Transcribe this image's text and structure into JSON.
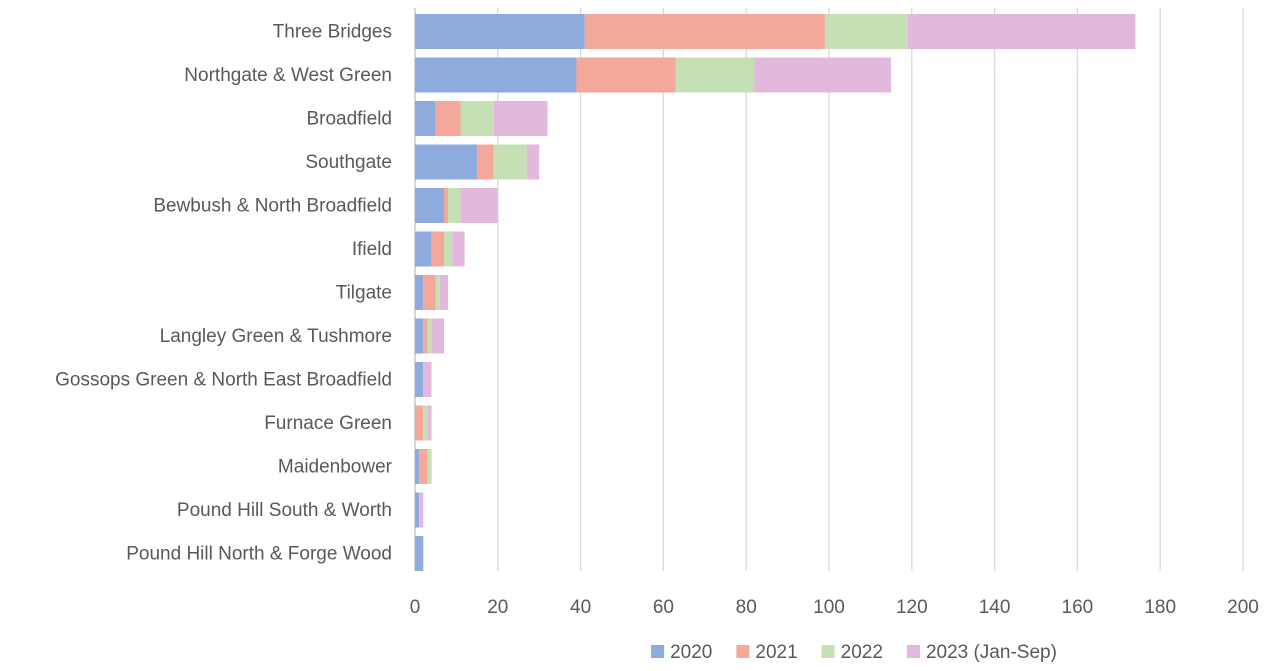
{
  "chart_data": {
    "type": "bar",
    "orientation": "horizontal",
    "stacked": true,
    "title": "",
    "xlabel": "",
    "ylabel": "",
    "xlim": [
      0,
      200
    ],
    "x_ticks": [
      0,
      20,
      40,
      60,
      80,
      100,
      120,
      140,
      160,
      180,
      200
    ],
    "grid": true,
    "legend_position": "bottom",
    "categories": [
      "Three Bridges",
      "Northgate & West Green",
      "Broadfield",
      "Southgate",
      "Bewbush & North Broadfield",
      "Ifield",
      "Tilgate",
      "Langley Green & Tushmore",
      "Gossops Green & North East Broadfield",
      "Furnace Green",
      "Maidenbower",
      "Pound Hill South & Worth",
      "Pound Hill North & Forge Wood"
    ],
    "series": [
      {
        "name": "2020",
        "color": "#8faadc",
        "values": [
          41,
          39,
          5,
          15,
          7,
          4,
          2,
          2,
          2,
          0,
          1,
          1,
          2
        ]
      },
      {
        "name": "2021",
        "color": "#f4a89a",
        "values": [
          58,
          24,
          6,
          4,
          1,
          3,
          3,
          1,
          0,
          2,
          2,
          0,
          0
        ]
      },
      {
        "name": "2022",
        "color": "#c5e0b4",
        "values": [
          20,
          19,
          8,
          8,
          3,
          2,
          1,
          1,
          0,
          1,
          1,
          0,
          0
        ]
      },
      {
        "name": "2023 (Jan-Sep)",
        "color": "#e2b8dc",
        "values": [
          55,
          33,
          13,
          3,
          9,
          3,
          2,
          3,
          2,
          1,
          0,
          1,
          0
        ]
      }
    ]
  }
}
